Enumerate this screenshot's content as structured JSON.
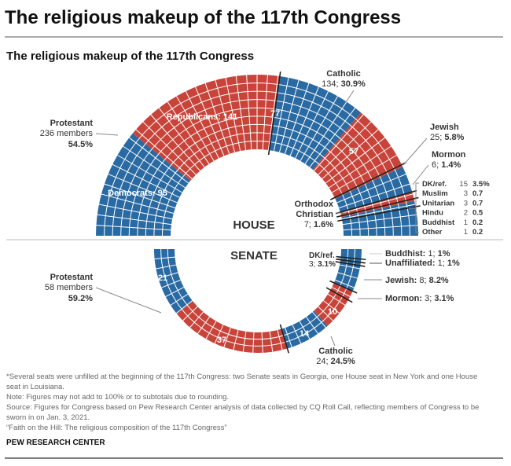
{
  "header": {
    "title": "The religious makeup of the 117th Congress",
    "subtitle": "The religious makeup of the 117th Congress"
  },
  "colors": {
    "democrat": "#2a6aa3",
    "republican": "#c8443a",
    "divider": "#222222"
  },
  "chart_data": [
    {
      "type": "parliament",
      "name": "HOUSE",
      "segments": [
        {
          "religion": "Protestant",
          "party": "Democrats",
          "seats": 95
        },
        {
          "religion": "Protestant",
          "party": "Republicans",
          "seats": 141
        },
        {
          "religion": "Catholic",
          "party": "Democrats",
          "seats": 77
        },
        {
          "religion": "Catholic",
          "party": "Republicans",
          "seats": 57
        },
        {
          "religion": "Jewish",
          "party": "Republicans",
          "seats": 2
        },
        {
          "religion": "Jewish",
          "party": "Democrats",
          "seats": 23
        },
        {
          "religion": "Mormon",
          "party": "Republicans",
          "seats": 6
        },
        {
          "religion": "Orthodox Christian",
          "party": "Republicans",
          "seats": 2
        },
        {
          "religion": "Orthodox Christian",
          "party": "Democrats",
          "seats": 5
        },
        {
          "religion": "Other groups",
          "party": "Democrats",
          "seats": 25
        }
      ],
      "seat_labels": {
        "democrats_protestant": "Democrats: 95",
        "republicans_protestant": "Republicans: 141",
        "dem_catholic": "77",
        "rep_catholic": "57"
      },
      "religion_labels": {
        "protestant": {
          "name": "Protestant",
          "count": "236 members",
          "pct": "54.5%"
        },
        "catholic": {
          "name": "Catholic",
          "count": "134; ",
          "pct": "30.9%"
        },
        "jewish": {
          "name": "Jewish",
          "count": "25; ",
          "pct": "5.8%"
        },
        "mormon": {
          "name": "Mormon",
          "count": "6; ",
          "pct": "1.4%"
        },
        "orthodox": {
          "name1": "Orthodox",
          "name2": "Christian",
          "count": "7; ",
          "pct": "1.6%"
        }
      },
      "other_table": [
        {
          "name": "DK/ref.",
          "count": "15",
          "pct": "3.5%"
        },
        {
          "name": "Muslim",
          "count": "3",
          "pct": "0.7"
        },
        {
          "name": "Unitarian",
          "count": "3",
          "pct": "0.7"
        },
        {
          "name": "Hindu",
          "count": "2",
          "pct": "0.5"
        },
        {
          "name": "Buddhist",
          "count": "1",
          "pct": "0.2"
        },
        {
          "name": "Other",
          "count": "1",
          "pct": "0.2"
        }
      ]
    },
    {
      "type": "parliament",
      "name": "SENATE",
      "segments": [
        {
          "religion": "Protestant",
          "party": "Democrats",
          "seats": 21
        },
        {
          "religion": "Protestant",
          "party": "Republicans",
          "seats": 37
        },
        {
          "religion": "Catholic",
          "party": "Democrats",
          "seats": 14
        },
        {
          "religion": "Catholic",
          "party": "Republicans",
          "seats": 10
        },
        {
          "religion": "Mormon",
          "party": "Republicans",
          "seats": 3
        },
        {
          "religion": "Jewish",
          "party": "Democrats",
          "seats": 8
        },
        {
          "religion": "Unaffiliated",
          "party": "Democrats",
          "seats": 1
        },
        {
          "religion": "Buddhist",
          "party": "Democrats",
          "seats": 1
        },
        {
          "religion": "DK/ref.",
          "party": "Democrats",
          "seats": 3
        }
      ],
      "seat_labels": {
        "dem_protestant": "21",
        "rep_protestant": "37",
        "dem_catholic": "14",
        "rep_catholic": "10"
      },
      "religion_labels": {
        "protestant": {
          "name": "Protestant",
          "count": "58 members",
          "pct": "59.2%"
        },
        "catholic": {
          "name": "Catholic",
          "count": "24; ",
          "pct": "24.5%"
        },
        "mormon": {
          "name": "Mormon: ",
          "count": "3; ",
          "pct": "3.1%"
        },
        "jewish": {
          "name": "Jewish: ",
          "count": "8; ",
          "pct": "8.2%"
        },
        "unaffiliated": {
          "name": "Unaffiliated: ",
          "count": "1; ",
          "pct": "1%"
        },
        "buddhist": {
          "name": "Buddhist: ",
          "count": "1; ",
          "pct": "1%"
        },
        "dkref": {
          "name": "DK/ref.",
          "count": "3; ",
          "pct": "3.1%"
        }
      }
    }
  ],
  "footer": {
    "note1a": "*Several seats were unfilled at the beginning of the 117th Congress: two Senate seats in Georgia, one House seat in New York and one House",
    "note1b": "seat in Louisiana.",
    "note2": "Note: Figures may not add to 100% or to subtotals due to rounding.",
    "source_a": "Source: Figures for Congress based on Pew Research Center analysis of data collected by CQ Roll Call, reflecting members of Congress to be",
    "source_b": "sworn in on Jan. 3, 2021.",
    "report": "“Faith on the Hill: The religious composition of the 117th Congress”",
    "org": "PEW RESEARCH CENTER"
  }
}
